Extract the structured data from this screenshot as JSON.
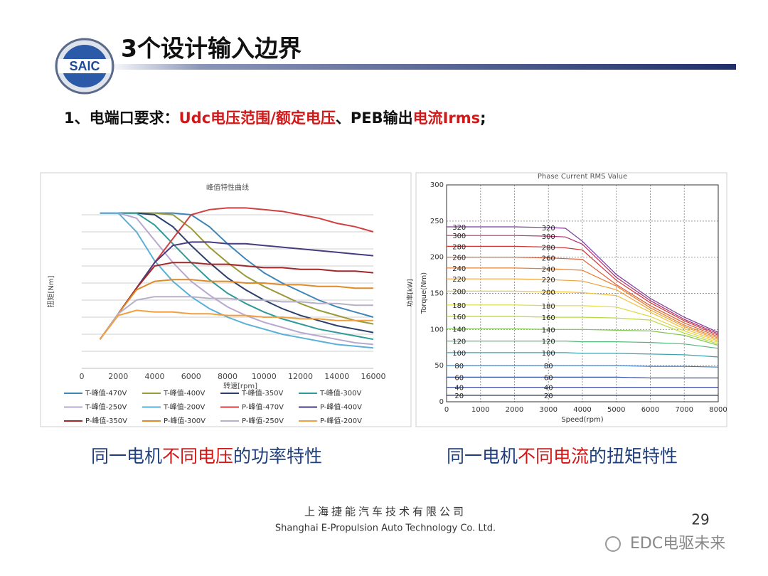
{
  "header": {
    "logo": "SAIC",
    "title": "3个设计输入边界"
  },
  "requirement": [
    {
      "text": "1、电端口要求：",
      "color": "#111111"
    },
    {
      "text": "Udc电压范围/额定电压",
      "color": "#d01818"
    },
    {
      "text": "、PEB输出",
      "color": "#111111"
    },
    {
      "text": "电流Irms",
      "color": "#d01818"
    },
    {
      "text": ";",
      "color": "#111111"
    }
  ],
  "chart_data": [
    {
      "type": "line",
      "title": "峰值特性曲线",
      "x_label": "转速[rpm]",
      "y_label": "扭矩[Nm]",
      "x": [
        1000,
        2000,
        3000,
        4000,
        5000,
        6000,
        7000,
        8000,
        9000,
        10000,
        11000,
        12000,
        13000,
        14000,
        15000,
        16000
      ],
      "xlim": [
        0,
        16000
      ],
      "xticks": [
        0,
        2000,
        4000,
        6000,
        8000,
        10000,
        12000,
        14000,
        16000
      ],
      "ylim": [
        0,
        10
      ],
      "grid": true,
      "series": [
        {
          "name": "T-峰值-470V",
          "color": "#3f86b8",
          "values": [
            9.1,
            9.1,
            9.1,
            9.1,
            9.1,
            9.0,
            8.3,
            7.3,
            6.4,
            5.6,
            5.0,
            4.5,
            4.0,
            3.6,
            3.3,
            3.0
          ]
        },
        {
          "name": "T-峰值-400V",
          "color": "#9a9a3a",
          "values": [
            9.1,
            9.1,
            9.1,
            9.1,
            9.0,
            8.2,
            7.1,
            6.2,
            5.4,
            4.8,
            4.3,
            3.8,
            3.4,
            3.1,
            2.8,
            2.6
          ]
        },
        {
          "name": "T-峰值-350V",
          "color": "#2a3f6a",
          "values": [
            9.1,
            9.1,
            9.1,
            9.0,
            8.3,
            7.2,
            6.2,
            5.3,
            4.6,
            4.0,
            3.5,
            3.1,
            2.8,
            2.5,
            2.3,
            2.1
          ]
        },
        {
          "name": "T-峰值-300V",
          "color": "#2f9a9a",
          "values": [
            9.1,
            9.1,
            9.1,
            8.4,
            7.3,
            6.2,
            5.2,
            4.4,
            3.8,
            3.3,
            2.9,
            2.6,
            2.3,
            2.1,
            1.9,
            1.7
          ]
        },
        {
          "name": "T-峰值-250V",
          "color": "#b8a8d0",
          "values": [
            9.1,
            9.1,
            8.8,
            7.5,
            6.2,
            5.1,
            4.3,
            3.6,
            3.1,
            2.7,
            2.4,
            2.1,
            1.9,
            1.7,
            1.5,
            1.4
          ]
        },
        {
          "name": "T-峰值-200V",
          "color": "#5ab0d8",
          "values": [
            9.1,
            9.1,
            8.0,
            6.3,
            5.1,
            4.2,
            3.5,
            3.0,
            2.6,
            2.3,
            2.0,
            1.8,
            1.6,
            1.4,
            1.3,
            1.2
          ]
        },
        {
          "name": "P-峰值-470V",
          "color": "#d04040",
          "values": [
            1.7,
            3.2,
            4.7,
            6.2,
            7.6,
            9.0,
            9.3,
            9.4,
            9.4,
            9.3,
            9.2,
            9.0,
            8.8,
            8.5,
            8.3,
            8.0
          ]
        },
        {
          "name": "P-峰值-400V",
          "color": "#4a3a80",
          "values": [
            1.7,
            3.2,
            4.7,
            6.2,
            7.2,
            7.4,
            7.4,
            7.3,
            7.3,
            7.2,
            7.1,
            7.0,
            6.9,
            6.8,
            6.7,
            6.6
          ]
        },
        {
          "name": "P-峰值-350V",
          "color": "#a02828",
          "values": [
            1.7,
            3.2,
            4.7,
            6.0,
            6.2,
            6.2,
            6.1,
            6.1,
            6.0,
            5.9,
            5.9,
            5.8,
            5.8,
            5.7,
            5.7,
            5.6
          ]
        },
        {
          "name": "P-峰值-300V",
          "color": "#e08a2a",
          "values": [
            1.7,
            3.2,
            4.6,
            5.1,
            5.2,
            5.2,
            5.1,
            5.1,
            5.0,
            5.0,
            4.9,
            4.9,
            4.8,
            4.8,
            4.7,
            4.7
          ]
        },
        {
          "name": "P-峰值-250V",
          "color": "#b8b0c8",
          "values": [
            1.7,
            3.2,
            4.0,
            4.2,
            4.2,
            4.2,
            4.1,
            4.1,
            4.0,
            4.0,
            3.9,
            3.9,
            3.8,
            3.8,
            3.7,
            3.7
          ]
        },
        {
          "name": "P-峰值-200V",
          "color": "#f0a040",
          "values": [
            1.7,
            3.1,
            3.4,
            3.3,
            3.3,
            3.2,
            3.2,
            3.1,
            3.1,
            3.0,
            3.0,
            2.9,
            2.9,
            2.8,
            2.8,
            2.8
          ]
        }
      ]
    },
    {
      "type": "contour",
      "title": "Phase Current RMS Value",
      "x_label": "Speed(rpm)",
      "y_label": "Torque(Nm)",
      "y2_label": "功率[kW]",
      "x": [
        0,
        1000,
        2000,
        3000,
        3500,
        4000,
        5000,
        6000,
        7000,
        8000
      ],
      "xlim": [
        0,
        8000
      ],
      "xticks": [
        0,
        1000,
        2000,
        3000,
        4000,
        5000,
        6000,
        7000,
        8000
      ],
      "ylim": [
        0,
        300
      ],
      "yticks": [
        0,
        50,
        100,
        150,
        200,
        250,
        300
      ],
      "grid": true,
      "series": [
        {
          "name": "320",
          "color": "#7a3a9a",
          "values": [
            242,
            242,
            242,
            241,
            240,
            222,
            176,
            143,
            117,
            96
          ]
        },
        {
          "name": "300",
          "color": "#b03070",
          "values": [
            230,
            230,
            230,
            229,
            228,
            218,
            172,
            140,
            114,
            94
          ]
        },
        {
          "name": "280",
          "color": "#d03838",
          "values": [
            215,
            215,
            215,
            214,
            213,
            210,
            168,
            137,
            112,
            92
          ]
        },
        {
          "name": "260",
          "color": "#e05a30",
          "values": [
            200,
            200,
            200,
            199,
            198,
            197,
            162,
            133,
            109,
            90
          ]
        },
        {
          "name": "240",
          "color": "#e88030",
          "values": [
            185,
            185,
            185,
            184,
            183,
            182,
            160,
            130,
            106,
            88
          ]
        },
        {
          "name": "220",
          "color": "#f0a038",
          "values": [
            170,
            170,
            170,
            169,
            168,
            167,
            155,
            127,
            104,
            86
          ]
        },
        {
          "name": "200",
          "color": "#f0c040",
          "values": [
            153,
            153,
            153,
            152,
            152,
            151,
            147,
            124,
            101,
            84
          ]
        },
        {
          "name": "180",
          "color": "#e0d840",
          "values": [
            134,
            134,
            134,
            133,
            133,
            133,
            131,
            118,
            98,
            82
          ]
        },
        {
          "name": "160",
          "color": "#b8d840",
          "values": [
            118,
            118,
            118,
            117,
            117,
            117,
            116,
            113,
            95,
            80
          ]
        },
        {
          "name": "140",
          "color": "#80c850",
          "values": [
            101,
            101,
            101,
            100,
            100,
            100,
            99,
            98,
            92,
            78
          ]
        },
        {
          "name": "120",
          "color": "#50b878",
          "values": [
            84,
            84,
            84,
            84,
            84,
            83,
            83,
            82,
            80,
            74
          ]
        },
        {
          "name": "100",
          "color": "#40a0b0",
          "values": [
            68,
            68,
            68,
            68,
            68,
            67,
            67,
            66,
            65,
            62
          ]
        },
        {
          "name": "80",
          "color": "#3878c0",
          "values": [
            50,
            50,
            50,
            50,
            50,
            50,
            50,
            49,
            49,
            48
          ]
        },
        {
          "name": "60",
          "color": "#3050a8",
          "values": [
            34,
            34,
            34,
            34,
            34,
            34,
            34,
            33,
            33,
            33
          ]
        },
        {
          "name": "40",
          "color": "#283880",
          "values": [
            20,
            20,
            20,
            20,
            20,
            20,
            20,
            20,
            20,
            20
          ]
        },
        {
          "name": "20",
          "color": "#202850",
          "values": [
            9,
            9,
            9,
            9,
            9,
            9,
            9,
            9,
            9,
            9
          ]
        }
      ]
    }
  ],
  "captions": [
    [
      {
        "text": "同一电机",
        "color": "#1f3f7a"
      },
      {
        "text": "不同电压",
        "color": "#d01818"
      },
      {
        "text": "的功率特性",
        "color": "#1f3f7a"
      }
    ],
    [
      {
        "text": "同一电机",
        "color": "#1f3f7a"
      },
      {
        "text": "不同电流",
        "color": "#d01818"
      },
      {
        "text": "的扭矩特性",
        "color": "#1f3f7a"
      }
    ]
  ],
  "footer": {
    "company_cn": "上海捷能汽车技术有限公司",
    "company_en": "Shanghai E-Propulsion Auto Technology Co. Ltd.",
    "page_number": 29
  },
  "watermark": "EDC电驱未来"
}
